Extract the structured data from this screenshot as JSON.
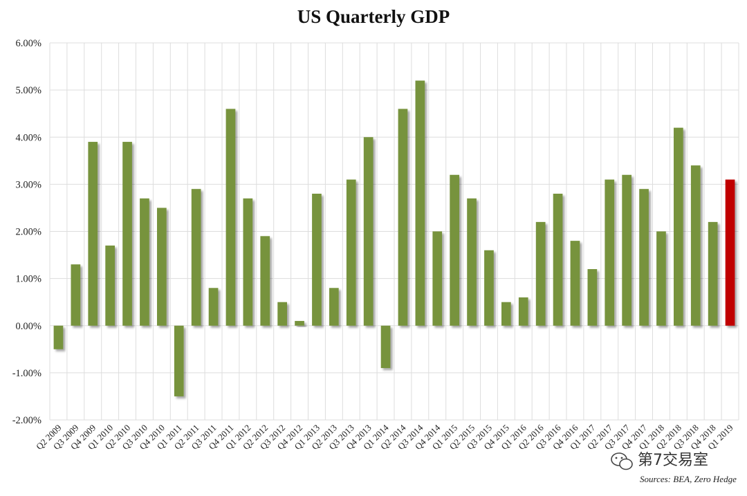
{
  "chart_data": {
    "type": "bar",
    "title": "US Quarterly GDP",
    "xlabel": "",
    "ylabel": "",
    "ylim": [
      -2.0,
      6.0
    ],
    "yticks": [
      {
        "value": 6,
        "label": "6.00%"
      },
      {
        "value": 5,
        "label": "5.00%"
      },
      {
        "value": 4,
        "label": "4.00%"
      },
      {
        "value": 3,
        "label": "3.00%"
      },
      {
        "value": 2,
        "label": "2.00%"
      },
      {
        "value": 1,
        "label": "1.00%"
      },
      {
        "value": 0,
        "label": "0.00%"
      },
      {
        "value": -1,
        "label": "-1.00%"
      },
      {
        "value": -2,
        "label": "-2.00%"
      }
    ],
    "grid": true,
    "categories": [
      "Q2 2009",
      "Q3 2009",
      "Q4 2009",
      "Q1 2010",
      "Q2 2010",
      "Q3 2010",
      "Q4 2010",
      "Q1 2011",
      "Q2 2011",
      "Q3 2011",
      "Q4 2011",
      "Q1 2012",
      "Q2 2012",
      "Q3 2012",
      "Q4 2012",
      "Q1 2013",
      "Q2 2013",
      "Q3 2013",
      "Q4 2013",
      "Q1 2014",
      "Q2 2014",
      "Q3 2014",
      "Q4 2014",
      "Q1 2015",
      "Q2 2015",
      "Q3 2015",
      "Q4 2015",
      "Q1 2016",
      "Q2 2016",
      "Q3 2016",
      "Q4 2016",
      "Q1 2017",
      "Q2 2017",
      "Q3 2017",
      "Q4 2017",
      "Q1 2018",
      "Q2 2018",
      "Q3 2018",
      "Q4 2018",
      "Q1 2019"
    ],
    "values": [
      -0.5,
      1.3,
      3.9,
      1.7,
      3.9,
      2.7,
      2.5,
      -1.5,
      2.9,
      0.8,
      4.6,
      2.7,
      1.9,
      0.5,
      0.1,
      2.8,
      0.8,
      3.1,
      4.0,
      -0.9,
      4.6,
      5.2,
      2.0,
      3.2,
      2.7,
      1.6,
      0.5,
      0.6,
      2.2,
      2.8,
      1.8,
      1.2,
      3.1,
      3.2,
      2.9,
      2.0,
      4.2,
      3.4,
      2.2,
      3.1
    ],
    "colors": {
      "default": "#77933c",
      "highlight": "#c00000",
      "grid": "#dddddd"
    },
    "highlight_index": 39
  },
  "footer": {
    "source": "Sources: BEA, Zero Hedge",
    "watermark": "第7交易室"
  }
}
